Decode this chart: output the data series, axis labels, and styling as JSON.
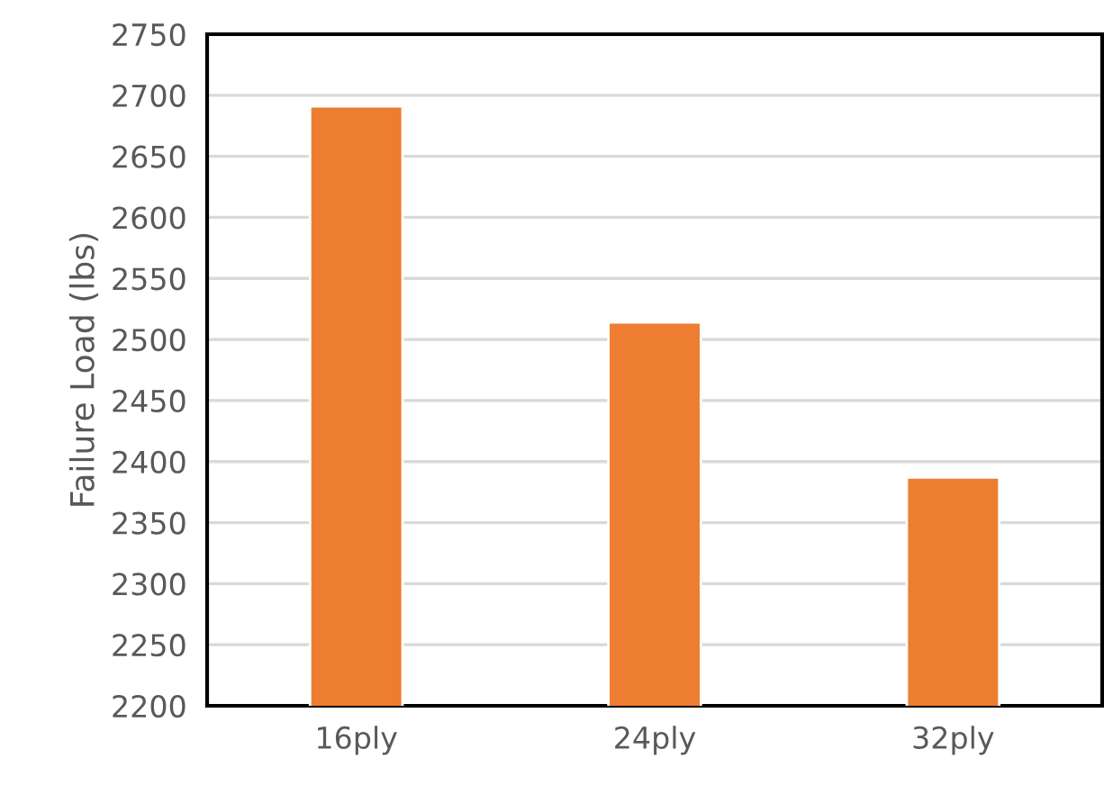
{
  "chart_data": {
    "type": "bar",
    "ylabel": "Failure Load (lbs)",
    "categories": [
      "16ply",
      "24ply",
      "32ply"
    ],
    "values": [
      2691,
      2514,
      2387
    ],
    "color": "#ed7d31",
    "ylim": [
      2200,
      2750
    ],
    "yticks": [
      2200,
      2250,
      2300,
      2350,
      2400,
      2450,
      2500,
      2550,
      2600,
      2650,
      2700,
      2750
    ],
    "grid": "y"
  }
}
